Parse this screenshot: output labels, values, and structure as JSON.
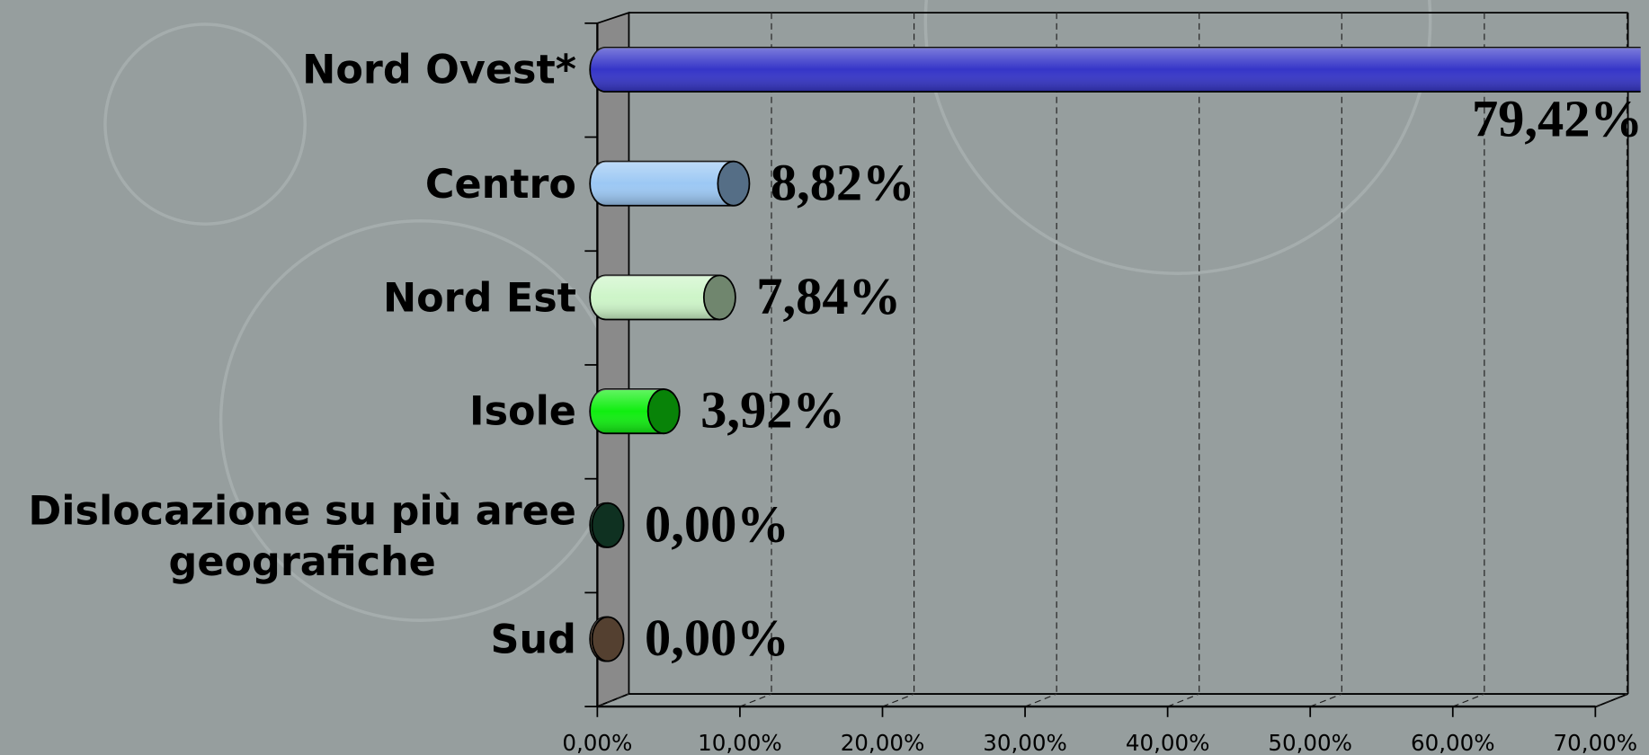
{
  "chart_data": {
    "type": "bar",
    "orientation": "horizontal",
    "categories": [
      "Nord Ovest*",
      "Centro",
      "Nord Est",
      "Isole",
      "Dislocazione su più aree\ngeografiche",
      "Sud"
    ],
    "values": [
      79.42,
      8.82,
      7.84,
      3.92,
      0,
      0
    ],
    "value_labels": [
      "79,42%",
      "8,82%",
      "7,84%",
      "3,92%",
      "0,00%",
      "0,00%"
    ],
    "colors": [
      "#3535c8",
      "#9cc8f4",
      "#cdf5c8",
      "#10ee10",
      "#1d5a3c",
      "#9a7558"
    ],
    "xlim": [
      0,
      70
    ],
    "xticks": [
      {
        "value": 0,
        "label": "0,00%"
      },
      {
        "value": 10,
        "label": "10,00%"
      },
      {
        "value": 20,
        "label": "20,00%"
      },
      {
        "value": 30,
        "label": "30,00%"
      },
      {
        "value": 40,
        "label": "40,00%"
      },
      {
        "value": 50,
        "label": "50,00%"
      },
      {
        "value": 60,
        "label": "60,00%"
      },
      {
        "value": 70,
        "label": "70,00%"
      }
    ],
    "grid": true
  }
}
